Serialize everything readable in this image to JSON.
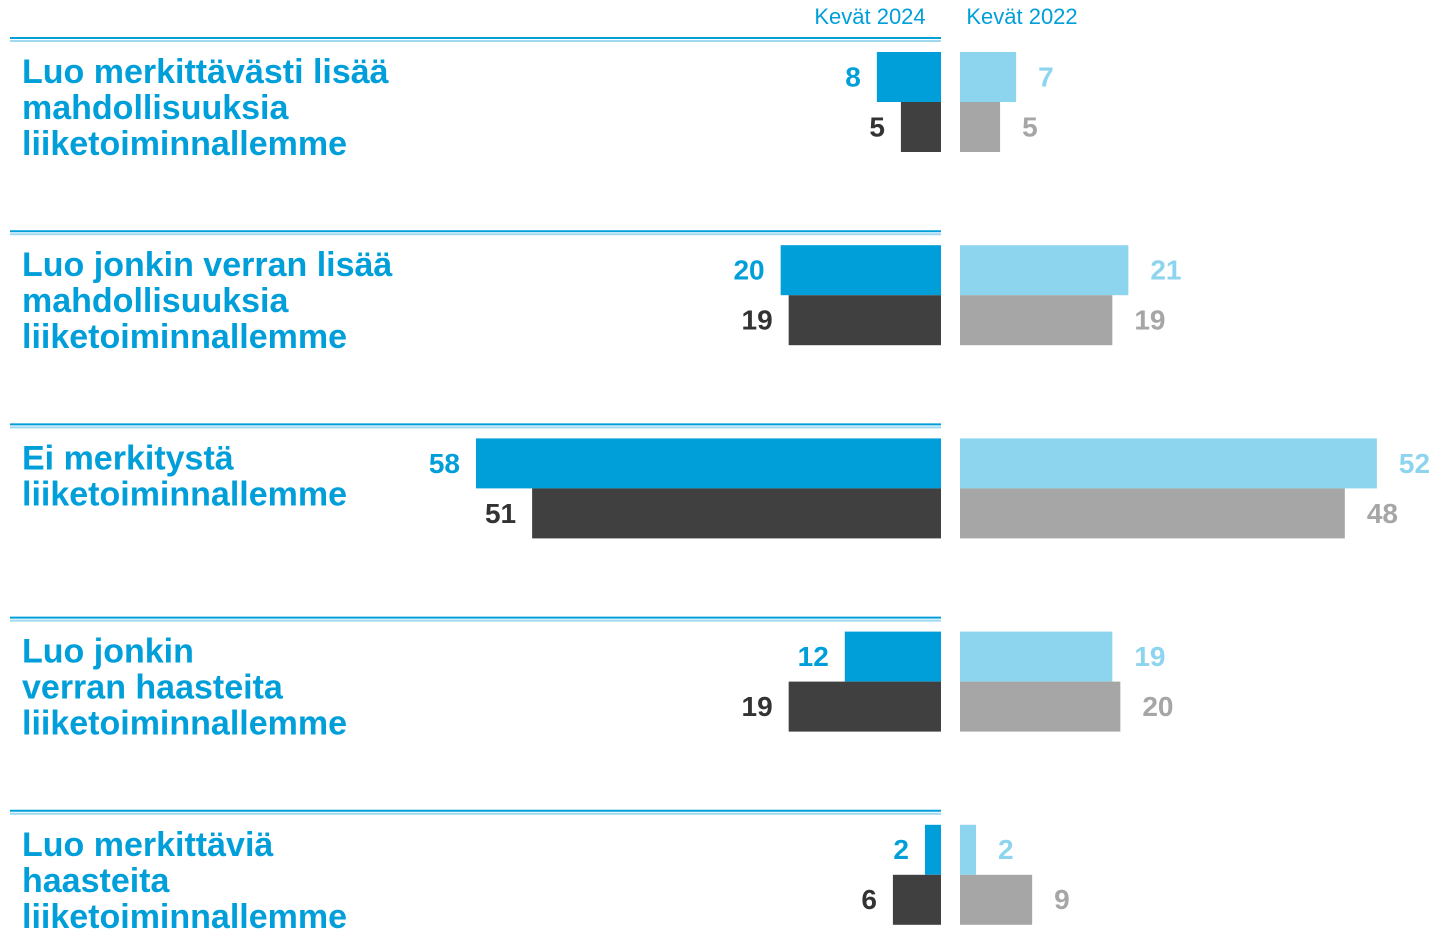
{
  "chart_data": {
    "type": "bar",
    "categories": [
      [
        "Luo merkittävästi lisää",
        "mahdollisuuksia",
        "liiketoiminnallemme"
      ],
      [
        "Luo jonkin verran lisää",
        "mahdollisuuksia",
        "liiketoiminnallemme"
      ],
      [
        "Ei merkitystä",
        "liiketoiminnallemme"
      ],
      [
        "Luo jonkin",
        "verran haasteita",
        "liiketoiminnallemme"
      ],
      [
        "Luo merkittäviä",
        "haasteita",
        "liiketoiminnallemme"
      ]
    ],
    "panels": [
      {
        "title": "Kevät 2024",
        "series": [
          {
            "color": "#009fda",
            "label_color": "#009fda",
            "values": [
              8,
              20,
              58,
              12,
              2
            ]
          },
          {
            "color": "#404040",
            "label_color": "#333333",
            "values": [
              5,
              19,
              51,
              19,
              6
            ]
          }
        ]
      },
      {
        "title": "Kevät 2022",
        "series": [
          {
            "color": "#8dd4ee",
            "label_color": "#8dd4ee",
            "values": [
              7,
              21,
              52,
              19,
              2
            ]
          },
          {
            "color": "#a6a6a6",
            "label_color": "#a6a6a6",
            "values": [
              5,
              19,
              48,
              20,
              9
            ]
          }
        ]
      }
    ]
  }
}
